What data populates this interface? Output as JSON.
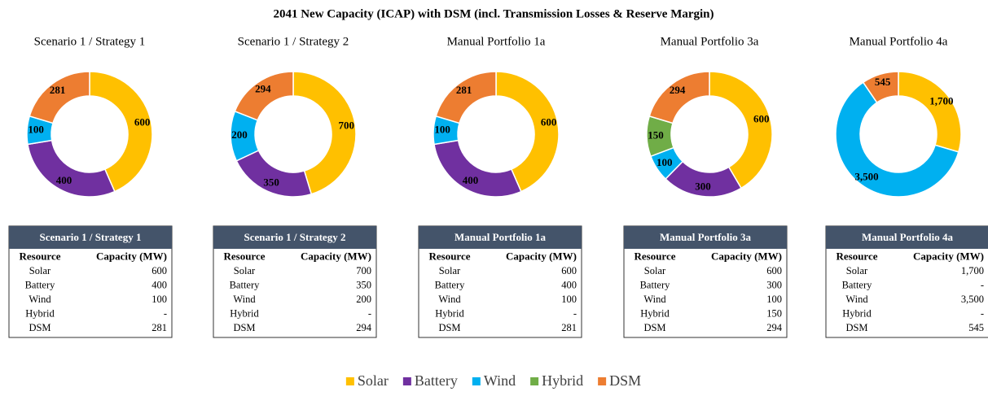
{
  "title": "2041 New Capacity (ICAP) with DSM (incl. Transmission Losses & Reserve Margin)",
  "chart_data": [
    {
      "type": "donut",
      "title": "Scenario 1 / Strategy 1",
      "categories": [
        "Solar",
        "Battery",
        "Wind",
        "Hybrid",
        "DSM"
      ],
      "values": [
        600,
        400,
        100,
        0,
        281
      ],
      "colors": [
        "#ffc000",
        "#7030a0",
        "#00b0f0",
        "#70ad47",
        "#ed7d31"
      ]
    },
    {
      "type": "donut",
      "title": "Scenario 1 / Strategy 2",
      "categories": [
        "Solar",
        "Battery",
        "Wind",
        "Hybrid",
        "DSM"
      ],
      "values": [
        700,
        350,
        200,
        0,
        294
      ],
      "colors": [
        "#ffc000",
        "#7030a0",
        "#00b0f0",
        "#70ad47",
        "#ed7d31"
      ]
    },
    {
      "type": "donut",
      "title": "Manual Portfolio 1a",
      "categories": [
        "Solar",
        "Battery",
        "Wind",
        "Hybrid",
        "DSM"
      ],
      "values": [
        600,
        400,
        100,
        0,
        281
      ],
      "colors": [
        "#ffc000",
        "#7030a0",
        "#00b0f0",
        "#70ad47",
        "#ed7d31"
      ]
    },
    {
      "type": "donut",
      "title": "Manual Portfolio 3a",
      "categories": [
        "Solar",
        "Battery",
        "Wind",
        "Hybrid",
        "DSM"
      ],
      "values": [
        600,
        300,
        100,
        150,
        294
      ],
      "colors": [
        "#ffc000",
        "#7030a0",
        "#00b0f0",
        "#70ad47",
        "#ed7d31"
      ]
    },
    {
      "type": "donut",
      "title": "Manual Portfolio 4a",
      "categories": [
        "Solar",
        "Battery",
        "Wind",
        "Hybrid",
        "DSM"
      ],
      "values": [
        1700,
        0,
        3500,
        0,
        545
      ],
      "value_labels": [
        "1,700",
        null,
        "3,500",
        null,
        "545"
      ],
      "colors": [
        "#ffc000",
        "#7030a0",
        "#00b0f0",
        "#70ad47",
        "#ed7d31"
      ]
    }
  ],
  "tables": [
    {
      "title": "Scenario 1 / Strategy 1",
      "columns": [
        "Resource",
        "Capacity (MW)"
      ],
      "rows": [
        [
          "Solar",
          "600"
        ],
        [
          "Battery",
          "400"
        ],
        [
          "Wind",
          "100"
        ],
        [
          "Hybrid",
          "-"
        ],
        [
          "DSM",
          "281"
        ]
      ]
    },
    {
      "title": "Scenario 1 / Strategy 2",
      "columns": [
        "Resource",
        "Capacity (MW)"
      ],
      "rows": [
        [
          "Solar",
          "700"
        ],
        [
          "Battery",
          "350"
        ],
        [
          "Wind",
          "200"
        ],
        [
          "Hybrid",
          "-"
        ],
        [
          "DSM",
          "294"
        ]
      ]
    },
    {
      "title": "Manual Portfolio 1a",
      "columns": [
        "Resource",
        "Capacity (MW)"
      ],
      "rows": [
        [
          "Solar",
          "600"
        ],
        [
          "Battery",
          "400"
        ],
        [
          "Wind",
          "100"
        ],
        [
          "Hybrid",
          "-"
        ],
        [
          "DSM",
          "281"
        ]
      ]
    },
    {
      "title": "Manual Portfolio 3a",
      "columns": [
        "Resource",
        "Capacity (MW)"
      ],
      "rows": [
        [
          "Solar",
          "600"
        ],
        [
          "Battery",
          "300"
        ],
        [
          "Wind",
          "100"
        ],
        [
          "Hybrid",
          "150"
        ],
        [
          "DSM",
          "294"
        ]
      ]
    },
    {
      "title": "Manual Portfolio 4a",
      "columns": [
        "Resource",
        "Capacity (MW)"
      ],
      "rows": [
        [
          "Solar",
          "1,700"
        ],
        [
          "Battery",
          "-"
        ],
        [
          "Wind",
          "3,500"
        ],
        [
          "Hybrid",
          "-"
        ],
        [
          "DSM",
          "545"
        ]
      ]
    }
  ]
}
